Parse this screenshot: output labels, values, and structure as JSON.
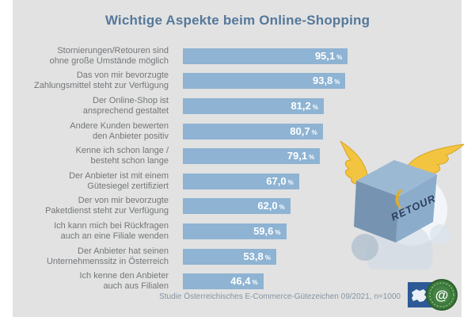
{
  "title": "Wichtige Aspekte beim Online-Shopping",
  "chart_data": {
    "type": "bar",
    "orientation": "horizontal",
    "title": "Wichtige Aspekte beim Online-Shopping",
    "unit": "%",
    "xlim": [
      0,
      100
    ],
    "grid": false,
    "legend": false,
    "bar_color": "#8eb3d3",
    "categories": [
      "Stornierungen/Retouren sind ohne große Umstände möglich",
      "Das von mir bevorzugte Zahlungsmittel steht zur Verfügung",
      "Der Online-Shop ist ansprechend gestaltet",
      "Andere Kunden bewerten den Anbieter positiv",
      "Kenne ich schon lange / besteht schon lange",
      "Der Anbieter ist mit einem Gütesiegel zertifiziert",
      "Der von mir bevorzugte Paketdienst steht zur Verfügung",
      "Ich kann mich bei Rückfragen auch an eine Filiale wenden",
      "Der Anbieter hat seinen Unternehmenssitz in Österreich",
      "Ich kenne den Anbieter auch aus Filialen"
    ],
    "category_lines": [
      [
        "Stornierungen/Retouren sind",
        "ohne große Umstände möglich"
      ],
      [
        "Das von mir bevorzugte",
        "Zahlungsmittel steht zur Verfügung"
      ],
      [
        "Der Online-Shop ist",
        "ansprechend gestaltet"
      ],
      [
        "Andere Kunden bewerten",
        "den Anbieter positiv"
      ],
      [
        "Kenne ich schon lange /",
        "besteht schon lange"
      ],
      [
        "Der Anbieter ist mit einem",
        "Gütesiegel zertifiziert"
      ],
      [
        "Der von mir bevorzugte",
        "Paketdienst steht zur Verfügung"
      ],
      [
        "Ich kann mich bei Rückfragen",
        "auch an eine Filiale wenden"
      ],
      [
        "Der Anbieter hat seinen",
        "Unternehmenssitz in Österreich"
      ],
      [
        "Ich kenne den Anbieter",
        "auch aus Filialen"
      ]
    ],
    "values": [
      95.1,
      93.8,
      81.2,
      80.7,
      79.1,
      67.0,
      62.0,
      59.6,
      53.8,
      46.4
    ],
    "value_labels": [
      "95,1",
      "93,8",
      "81,2",
      "80,7",
      "79,1",
      "67,0",
      "62,0",
      "59,6",
      "53,8",
      "46,4"
    ],
    "source": "Studie Österreichisches E-Commerce-Gütezeichen 09/2021, n=1000"
  },
  "footer": {
    "source": "Studie Österreichisches E-Commerce-Gütezeichen 09/2021, n=1000"
  },
  "illustration": {
    "box_label": "RETOUR"
  },
  "logo": {
    "at_symbol": "@"
  },
  "colors": {
    "canvas_bg": "#e2e2e2",
    "title": "#55789a",
    "label": "#737679",
    "bar": "#8eb3d3",
    "value_text": "#ffffff",
    "source_text": "#8693a1",
    "wing_yellow": "#f3c440",
    "box_blue_dark": "#7693b2",
    "box_blue_light": "#8badcb"
  }
}
